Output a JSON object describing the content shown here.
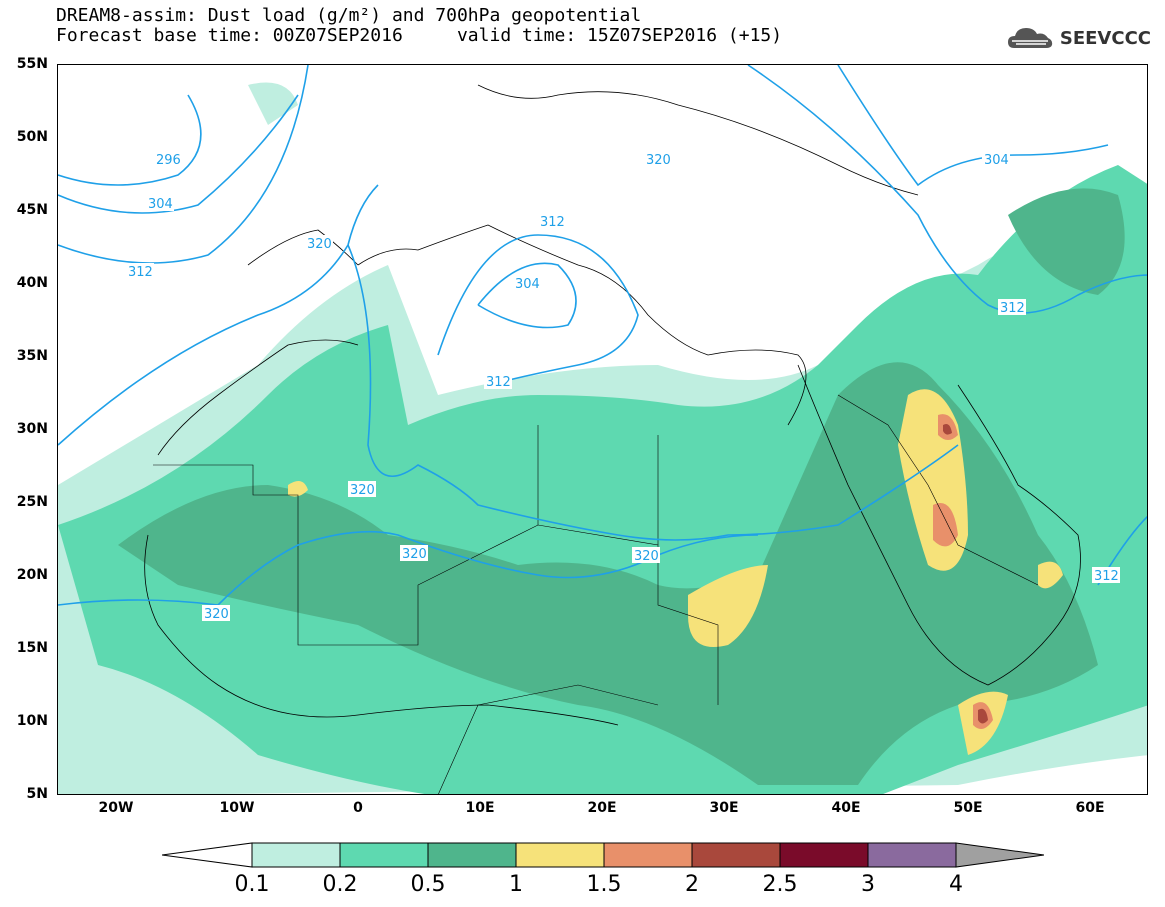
{
  "header": {
    "line1": "DREAM8-assim: Dust load (g/m²) and 700hPa geopotential",
    "line2": "Forecast base time: 00Z07SEP2016     valid time: 15Z07SEP2016 (+15)"
  },
  "logo": {
    "text": "SEEVCCC",
    "icon": "cloud-icon"
  },
  "map": {
    "lat_labels": [
      "55N",
      "50N",
      "45N",
      "40N",
      "35N",
      "30N",
      "25N",
      "20N",
      "15N",
      "10N",
      "5N"
    ],
    "lon_labels": [
      "20W",
      "10W",
      "0",
      "10E",
      "20E",
      "30E",
      "40E",
      "50E",
      "60E"
    ],
    "contour_labels": [
      "296",
      "304",
      "312",
      "320",
      "312",
      "304",
      "320",
      "304",
      "312",
      "312",
      "320",
      "320",
      "320",
      "320",
      "312"
    ]
  },
  "colorbar": {
    "labels": [
      "0.1",
      "0.2",
      "0.5",
      "1",
      "1.5",
      "2",
      "2.5",
      "3",
      "4"
    ],
    "colors": [
      "#ffffff",
      "#bfeee0",
      "#5ed9b0",
      "#4fb58c",
      "#f6e27a",
      "#e8906a",
      "#a9483c",
      "#7a0b2a",
      "#8a6a9e",
      "#a0a0a0"
    ]
  }
}
